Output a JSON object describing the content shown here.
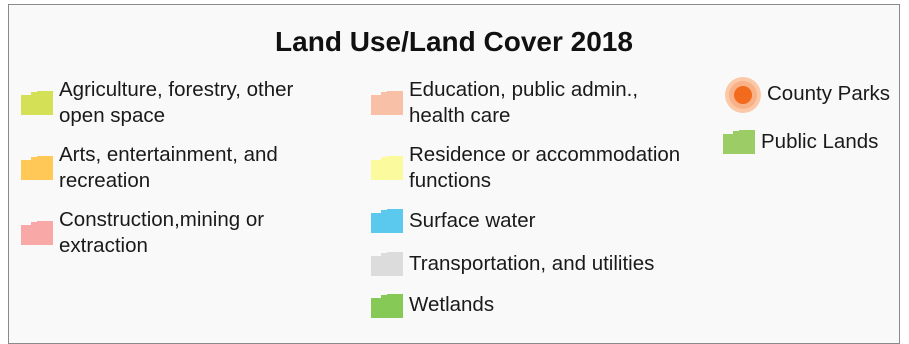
{
  "legend": {
    "title": "Land Use/Land Cover 2018",
    "items": [
      {
        "id": "agriculture",
        "lines": [
          "Agriculture, forestry, other",
          "open space"
        ],
        "color": "#d4e157",
        "symbol": "polygon"
      },
      {
        "id": "arts",
        "lines": [
          "Arts, entertainment, and",
          "recreation"
        ],
        "color": "#ffc857",
        "symbol": "polygon"
      },
      {
        "id": "construction",
        "lines": [
          "Construction,mining or",
          "extraction"
        ],
        "color": "#f9a8a8",
        "symbol": "polygon"
      },
      {
        "id": "education",
        "lines": [
          "Education, public admin.,",
          "health care"
        ],
        "color": "#f9c0a8",
        "symbol": "polygon"
      },
      {
        "id": "residence",
        "lines": [
          "Residence or accommodation",
          "functions"
        ],
        "color": "#fbfb9e",
        "symbol": "polygon"
      },
      {
        "id": "surface-water",
        "lines": [
          "Surface water"
        ],
        "color": "#5bc8ee",
        "symbol": "polygon"
      },
      {
        "id": "transportation",
        "lines": [
          "Transportation, and utilities"
        ],
        "color": "#dcdcdc",
        "symbol": "polygon"
      },
      {
        "id": "wetlands",
        "lines": [
          "Wetlands"
        ],
        "color": "#86c957",
        "symbol": "polygon"
      },
      {
        "id": "county-parks",
        "lines": [
          "County Parks"
        ],
        "color": "#f26a1b",
        "halo_color": "#fbc8a8",
        "symbol": "point-icon"
      },
      {
        "id": "public-lands",
        "lines": [
          "Public Lands"
        ],
        "color": "#9ccc65",
        "symbol": "polygon"
      }
    ]
  }
}
